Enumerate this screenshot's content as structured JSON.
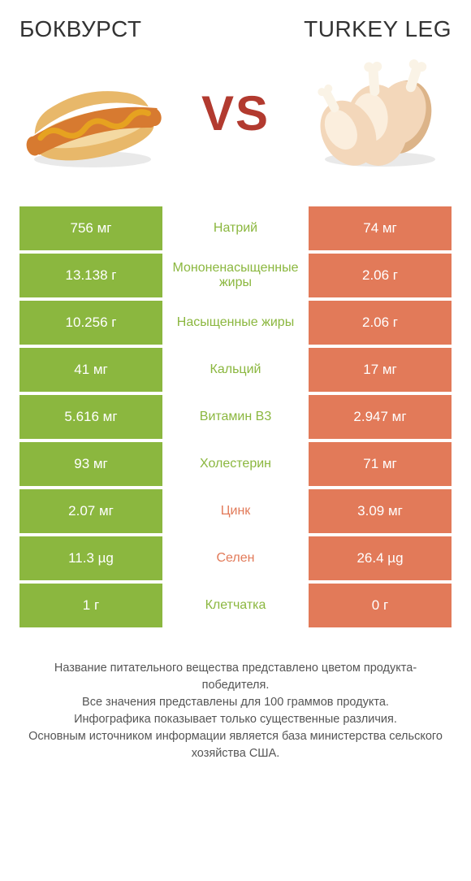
{
  "header": {
    "left_title": "БОКВУРСТ",
    "right_title": "TURKEY LEG",
    "vs_label": "VS"
  },
  "palette": {
    "left_color": "#8bb73f",
    "right_color": "#e27a59",
    "left_text_color": "#8bb73f",
    "right_text_color": "#e27a59",
    "vs_color": "#b23a2f",
    "background": "#ffffff"
  },
  "illustrations": {
    "left": {
      "name": "bockwurst-hotdog",
      "bun_color": "#e8b86a",
      "bun_inner": "#f4d9a2",
      "sausage_color": "#d77a30",
      "mustard_color": "#e6a220",
      "shadow": "#e9e9e9"
    },
    "right": {
      "name": "turkey-legs",
      "skin_color": "#f3d7ba",
      "skin_highlight": "#fbeedd",
      "skin_shadow": "#dcb489",
      "bone_color": "#faf3e6",
      "shadow": "#e9e9e9"
    }
  },
  "comparison": {
    "columns": [
      "left_value",
      "nutrient",
      "right_value"
    ],
    "rows": [
      {
        "left": "756 мг",
        "label": "Натрий",
        "right": "74 мг",
        "winner": "left"
      },
      {
        "left": "13.138 г",
        "label": "Мононенасыщенные жиры",
        "right": "2.06 г",
        "winner": "left"
      },
      {
        "left": "10.256 г",
        "label": "Насыщенные жиры",
        "right": "2.06 г",
        "winner": "left"
      },
      {
        "left": "41 мг",
        "label": "Кальций",
        "right": "17 мг",
        "winner": "left"
      },
      {
        "left": "5.616 мг",
        "label": "Витамин B3",
        "right": "2.947 мг",
        "winner": "left"
      },
      {
        "left": "93 мг",
        "label": "Холестерин",
        "right": "71 мг",
        "winner": "left"
      },
      {
        "left": "2.07 мг",
        "label": "Цинк",
        "right": "3.09 мг",
        "winner": "right"
      },
      {
        "left": "11.3 µg",
        "label": "Селен",
        "right": "26.4 µg",
        "winner": "right"
      },
      {
        "left": "1 г",
        "label": "Клетчатка",
        "right": "0 г",
        "winner": "left"
      }
    ]
  },
  "footnote": {
    "line1": "Название питательного вещества представлено цветом продукта-победителя.",
    "line2": "Все значения представлены для 100 граммов продукта.",
    "line3": "Инфографика показывает только существенные различия.",
    "line4": "Основным источником информации является база министерства сельского хозяйства США."
  }
}
